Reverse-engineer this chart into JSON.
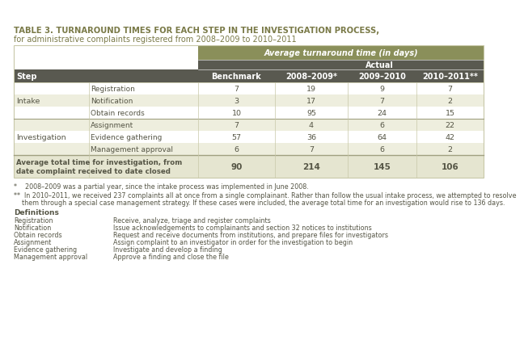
{
  "title_line1": "TABLE 3. TURNAROUND TIMES FOR EACH STEP IN THE INVESTIGATION PROCESS,",
  "title_line2": "for administrative complaints registered from 2008–2009 to 2010–2011",
  "header_group": "Average turnaround time (in days)",
  "header_sub": "Actual",
  "sections": [
    {
      "group": "Intake",
      "rows": [
        [
          "Registration",
          "7",
          "19",
          "9",
          "7"
        ],
        [
          "Notification",
          "3",
          "17",
          "7",
          "2"
        ],
        [
          "Obtain records",
          "10",
          "95",
          "24",
          "15"
        ]
      ]
    },
    {
      "group": "Investigation",
      "rows": [
        [
          "Assignment",
          "7",
          "4",
          "6",
          "22"
        ],
        [
          "Evidence gathering",
          "57",
          "36",
          "64",
          "42"
        ],
        [
          "Management approval",
          "6",
          "7",
          "6",
          "2"
        ]
      ]
    }
  ],
  "total_label": "Average total time for investigation, from\ndate complaint received to date closed",
  "total_values": [
    "90",
    "214",
    "145",
    "106"
  ],
  "footnote1": "*    2008–2009 was a partial year, since the intake process was implemented in June 2008.",
  "footnote2a": "**  In 2010–2011, we received 237 complaints all at once from a single complainant. Rather than follow the usual intake process, we attempted to resolve",
  "footnote2b": "    them through a special case management strategy. If these cases were included, the average total time for an investigation would rise to 136 days.",
  "definitions_title": "Definitions",
  "definitions": [
    [
      "Registration",
      "Receive, analyze, triage and register complaints"
    ],
    [
      "Notification",
      "Issue acknowledgements to complainants and section 32 notices to institutions"
    ],
    [
      "Obtain records",
      "Request and receive documents from institutions, and prepare files for investigators"
    ],
    [
      "Assignment",
      "Assign complaint to an investigator in order for the investigation to begin"
    ],
    [
      "Evidence gathering",
      "Investigate and develop a finding"
    ],
    [
      "Management approval",
      "Approve a finding and close the file"
    ]
  ],
  "color_header_olive": "#8a8f5a",
  "color_header_dark": "#595950",
  "color_row_white": "#ffffff",
  "color_row_light": "#eeeede",
  "color_row_total_bg": "#e5e5d0",
  "color_title_olive": "#7a7a48",
  "color_border_light": "#c8c8a8",
  "color_border_dark": "#a0a080",
  "color_text_body": "#555545",
  "color_text_white": "#ffffff"
}
